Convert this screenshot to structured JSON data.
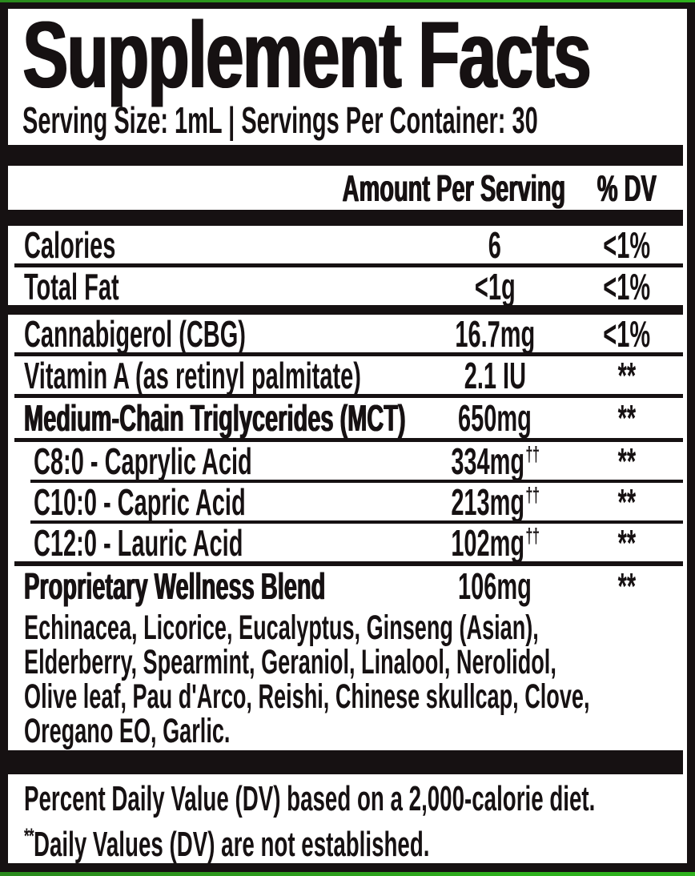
{
  "colors": {
    "ink": "#161112",
    "paper": "#ffffff",
    "accent_green": "#2da01d"
  },
  "label": {
    "title": "Supplement Facts",
    "serving_line": "Serving Size: 1mL | Servings Per Container: 30"
  },
  "table": {
    "amount_header": "Amount Per Serving",
    "dv_header": "% DV",
    "rows": [
      {
        "name": "Calories",
        "amount": "6",
        "dv": "<1%"
      },
      {
        "name": "Total Fat",
        "amount": "<1g",
        "dv": "<1%"
      },
      {
        "name": "Cannabigerol (CBG)",
        "amount": "16.7mg",
        "dv": "<1%"
      },
      {
        "name": "Vitamin A (as retinyl palmitate)",
        "amount": "2.1 IU",
        "dv": "**"
      },
      {
        "name": "Medium-Chain Triglycerides (MCT)",
        "amount": "650mg",
        "dv": "**"
      },
      {
        "name": "C8:0 - Caprylic Acid",
        "amount": "334mg",
        "amount_sup": "††",
        "dv": "**"
      },
      {
        "name": "C10:0 - Capric Acid",
        "amount": "213mg",
        "amount_sup": "††",
        "dv": "**"
      },
      {
        "name": "C12:0 - Lauric Acid",
        "amount": "102mg",
        "amount_sup": "††",
        "dv": "**"
      },
      {
        "name": "Proprietary Wellness Blend",
        "amount": "106mg",
        "dv": "**"
      }
    ]
  },
  "blend": {
    "lines": [
      "Echinacea, Licorice, Eucalyptus, Ginseng (Asian),",
      "Elderberry, Spearmint, Geraniol, Linalool, Nerolidol,",
      "Olive leaf, Pau d'Arco, Reishi, Chinese skullcap, Clove,",
      "Oregano EO, Garlic."
    ]
  },
  "footnotes": {
    "line1": "Percent Daily Value (DV) based on a 2,000-calorie diet.",
    "line2_prefix": "**",
    "line2": "Daily Values (DV) are not established."
  }
}
